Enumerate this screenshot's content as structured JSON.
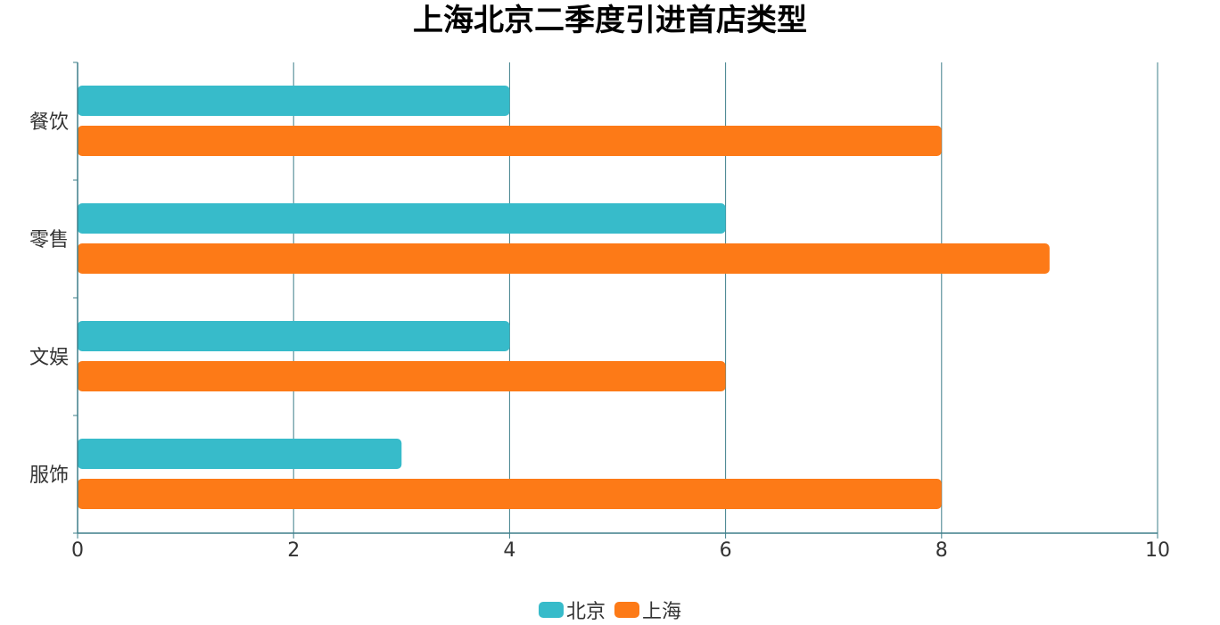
{
  "chart_data": {
    "type": "bar",
    "orientation": "horizontal",
    "title": "上海北京二季度引进首店类型",
    "categories": [
      "餐饮",
      "零售",
      "文娱",
      "服饰"
    ],
    "series": [
      {
        "name": "北京",
        "values": [
          4,
          6,
          4,
          3
        ],
        "color": "#37bbca"
      },
      {
        "name": "上海",
        "values": [
          8,
          9,
          6,
          8
        ],
        "color": "#fd7a17"
      }
    ],
    "xlim": [
      0,
      10
    ],
    "xticks": [
      "0",
      "2",
      "4",
      "6",
      "8",
      "10"
    ],
    "grid": true,
    "legend_position": "bottom-center",
    "axis_color": "#3e7f8a"
  }
}
